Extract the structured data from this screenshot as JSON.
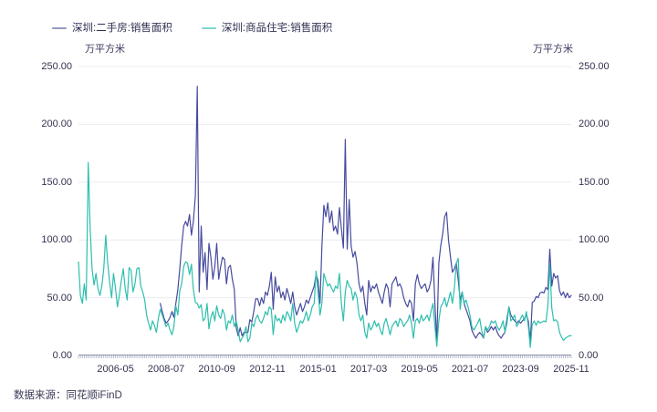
{
  "legend": [
    {
      "label": "深圳:二手房:销售面积",
      "swatch_color": "#9598bf"
    },
    {
      "label": "深圳:商品住宅:销售面积",
      "swatch_color": "#7fd6c9"
    }
  ],
  "axis_unit_left": "万平方米",
  "axis_unit_right": "万平方米",
  "source_text": "数据来源：同花顺iFinD",
  "chart_data": {
    "type": "line",
    "title": "",
    "unit": "万平方米",
    "x_start": "2004-10",
    "x_end": "2025-11",
    "x_frequency": "monthly",
    "ylim": [
      0,
      250
    ],
    "yticks": [
      0,
      50,
      100,
      150,
      200,
      250
    ],
    "grid_on": true,
    "grid_color": "#ececf3",
    "axis_color": "#8d90b0",
    "legend_position": "top-left",
    "xtick_labels": [
      {
        "label": "2006-05",
        "month_index": 19
      },
      {
        "label": "2008-07",
        "month_index": 45
      },
      {
        "label": "2010-09",
        "month_index": 71
      },
      {
        "label": "2012-11",
        "month_index": 97
      },
      {
        "label": "2015-01",
        "month_index": 123
      },
      {
        "label": "2017-03",
        "month_index": 149
      },
      {
        "label": "2019-05",
        "month_index": 175
      },
      {
        "label": "2021-07",
        "month_index": 201
      },
      {
        "label": "2023-09",
        "month_index": 227
      },
      {
        "label": "2025-11",
        "month_index": 253
      }
    ],
    "series": [
      {
        "name": "深圳:二手房:销售面积",
        "color": "#474b9e",
        "values": [
          null,
          null,
          null,
          null,
          null,
          null,
          null,
          null,
          null,
          null,
          null,
          null,
          null,
          null,
          null,
          null,
          null,
          null,
          null,
          null,
          null,
          null,
          null,
          null,
          null,
          null,
          null,
          null,
          null,
          null,
          null,
          null,
          null,
          null,
          null,
          null,
          null,
          null,
          null,
          null,
          null,
          null,
          45,
          38,
          32,
          28,
          30,
          33,
          38,
          33,
          45,
          57,
          75,
          95,
          112,
          116,
          112,
          122,
          104,
          116,
          138,
          233,
          55,
          112,
          72,
          89,
          57,
          97,
          85,
          66,
          77,
          97,
          66,
          77,
          85,
          83,
          62,
          76,
          78,
          66,
          57,
          24,
          17,
          24,
          17,
          20,
          20,
          20,
          31,
          29,
          38,
          49,
          49,
          43,
          50,
          45,
          55,
          52,
          60,
          72,
          40,
          68,
          55,
          60,
          50,
          55,
          48,
          58,
          52,
          45,
          55,
          42,
          35,
          40,
          45,
          38,
          42,
          48,
          45,
          50,
          55,
          60,
          70,
          65,
          45,
          95,
          130,
          120,
          132,
          115,
          125,
          108,
          112,
          105,
          128,
          110,
          93,
          187,
          92,
          135,
          95,
          85,
          90,
          80,
          62,
          55,
          60,
          45,
          35,
          65,
          55,
          60,
          58,
          62,
          55,
          50,
          45,
          55,
          62,
          58,
          42,
          62,
          65,
          68,
          60,
          62,
          58,
          50,
          45,
          42,
          48,
          45,
          30,
          62,
          70,
          62,
          58,
          60,
          62,
          55,
          58,
          65,
          85,
          45,
          12,
          80,
          95,
          105,
          120,
          124,
          100,
          85,
          72,
          75,
          80,
          65,
          48,
          55,
          45,
          40,
          35,
          30,
          22,
          18,
          15,
          18,
          20,
          18,
          15,
          25,
          20,
          22,
          25,
          22,
          25,
          20,
          17,
          15,
          18,
          20,
          32,
          42,
          35,
          32,
          30,
          28,
          30,
          28,
          30,
          32,
          35,
          30,
          12,
          46,
          47,
          51,
          50,
          54,
          55,
          54,
          59,
          57,
          92,
          60,
          71,
          67,
          69,
          56,
          52,
          55,
          50,
          54,
          50,
          52
        ]
      },
      {
        "name": "深圳:商品住宅:销售面积",
        "color": "#2ebfad",
        "values": [
          81,
          52,
          45,
          62,
          48,
          167,
          110,
          75,
          61,
          71,
          58,
          52,
          60,
          75,
          104,
          80,
          63,
          50,
          71,
          58,
          42,
          52,
          65,
          75,
          58,
          48,
          76,
          74,
          55,
          62,
          75,
          76,
          60,
          55,
          48,
          35,
          28,
          22,
          30,
          26,
          20,
          32,
          40,
          35,
          30,
          25,
          28,
          22,
          18,
          25,
          43,
          35,
          56,
          62,
          77,
          81,
          80,
          70,
          79,
          57,
          46,
          45,
          41,
          44,
          30,
          32,
          45,
          23,
          33,
          38,
          30,
          43,
          35,
          32,
          40,
          35,
          22,
          30,
          28,
          35,
          25,
          30,
          22,
          12,
          15,
          18,
          25,
          12,
          15,
          28,
          25,
          32,
          35,
          30,
          28,
          32,
          38,
          35,
          42,
          40,
          18,
          35,
          30,
          32,
          28,
          35,
          30,
          38,
          35,
          30,
          45,
          28,
          20,
          25,
          30,
          28,
          32,
          38,
          30,
          35,
          42,
          45,
          73,
          55,
          35,
          45,
          71,
          65,
          60,
          62,
          58,
          55,
          60,
          58,
          71,
          45,
          30,
          55,
          65,
          60,
          58,
          48,
          55,
          50,
          35,
          30,
          35,
          20,
          15,
          28,
          22,
          25,
          30,
          25,
          28,
          22,
          18,
          28,
          32,
          25,
          18,
          25,
          28,
          30,
          25,
          32,
          30,
          25,
          28,
          30,
          35,
          28,
          15,
          30,
          32,
          28,
          35,
          30,
          32,
          35,
          30,
          38,
          45,
          25,
          8,
          30,
          42,
          45,
          50,
          42,
          48,
          55,
          45,
          58,
          80,
          84,
          40,
          55,
          45,
          48,
          42,
          35,
          25,
          22,
          25,
          28,
          32,
          22,
          15,
          25,
          22,
          25,
          30,
          28,
          30,
          25,
          22,
          25,
          30,
          20,
          28,
          42,
          30,
          32,
          35,
          25,
          28,
          32,
          35,
          30,
          38,
          25,
          7,
          27,
          30,
          26,
          30,
          28,
          29,
          30,
          29,
          43,
          79,
          41,
          30,
          31,
          29,
          20,
          16,
          13,
          15,
          16,
          17,
          17
        ]
      }
    ]
  }
}
